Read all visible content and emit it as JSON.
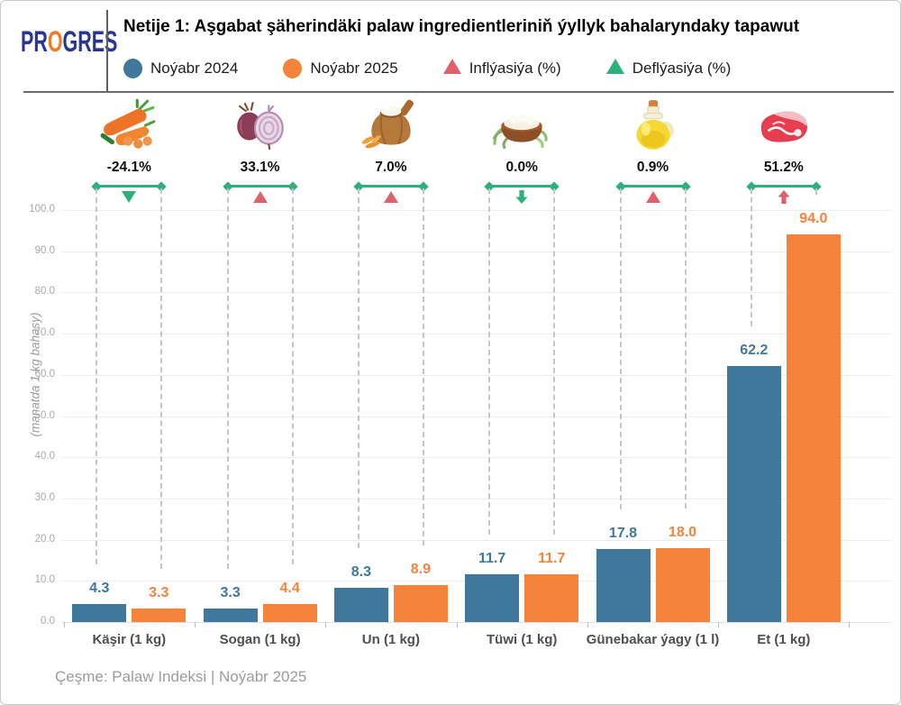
{
  "header": {
    "logo": {
      "part1": "PR",
      "part2": "O",
      "part3": "GRES"
    },
    "title": "Netije 1: Aşgabat şäherindäki palaw ingredientleriniň ýyllyk bahalaryndaky tapawut",
    "legend": [
      {
        "label": "Noýabr 2024",
        "marker": "circle",
        "color": "#3f789b"
      },
      {
        "label": "Noýabr 2025",
        "marker": "circle",
        "color": "#f5833c"
      },
      {
        "label": "Inflýasiýa (%)",
        "marker": "triangle",
        "color": "#e0606b"
      },
      {
        "label": "Deflýasiýa (%)",
        "marker": "triangle",
        "color": "#2eb07a"
      }
    ]
  },
  "chart_data": {
    "type": "bar",
    "categories": [
      "Käşir (1 kg)",
      "Sogan (1 kg)",
      "Un (1 kg)",
      "Tüwi (1 kg)",
      "Günebakar ýagy (1 l)",
      "Et (1 kg)"
    ],
    "series": [
      {
        "name": "Noýabr 2024",
        "color": "#3f789b",
        "values": [
          4.3,
          3.3,
          8.3,
          11.7,
          17.8,
          62.2
        ]
      },
      {
        "name": "Noýabr 2025",
        "color": "#f5833c",
        "values": [
          3.3,
          4.4,
          8.9,
          11.7,
          18.0,
          94.0
        ]
      }
    ],
    "value_labels": [
      [
        "4.3",
        "3.3",
        "8.3",
        "11.7",
        "17.8",
        "62.2"
      ],
      [
        "3.3",
        "4.4",
        "8.9",
        "11.7",
        "18.0",
        "94.0"
      ]
    ],
    "change_percent": [
      "-24.1%",
      "33.1%",
      "7.0%",
      "0.0%",
      "0.9%",
      "51.2%"
    ],
    "change_kind": [
      "deflation",
      "inflation",
      "inflation",
      "deflation",
      "inflation",
      "inflation"
    ],
    "change_marker": [
      "triangle-down",
      "triangle-up",
      "triangle-up",
      "arrow-down",
      "triangle-up",
      "arrow-up"
    ],
    "icons": [
      "carrot-icon",
      "onion-icon",
      "flour-sack-icon",
      "rice-bowl-icon",
      "oil-bottle-icon",
      "meat-icon"
    ],
    "ylabel": "(manatda 1 kg bahasy)",
    "yticks": [
      "0.0",
      "10.0",
      "20.0",
      "30.0",
      "40.0",
      "50.0",
      "60.0",
      "70.0",
      "80.0",
      "90.0",
      "100.0"
    ],
    "ylim": [
      0,
      105
    ],
    "grid": true,
    "legend_position": "top",
    "colors": {
      "bar_2024": "#3f789b",
      "bar_2025": "#f5833c",
      "inflation": "#e0606b",
      "deflation": "#2eb07a",
      "grid": "#ececec",
      "axis_text": "#a9a9a9"
    }
  },
  "footer": {
    "source": "Çeşme: Palaw Indeksi | Noýabr 2025"
  }
}
